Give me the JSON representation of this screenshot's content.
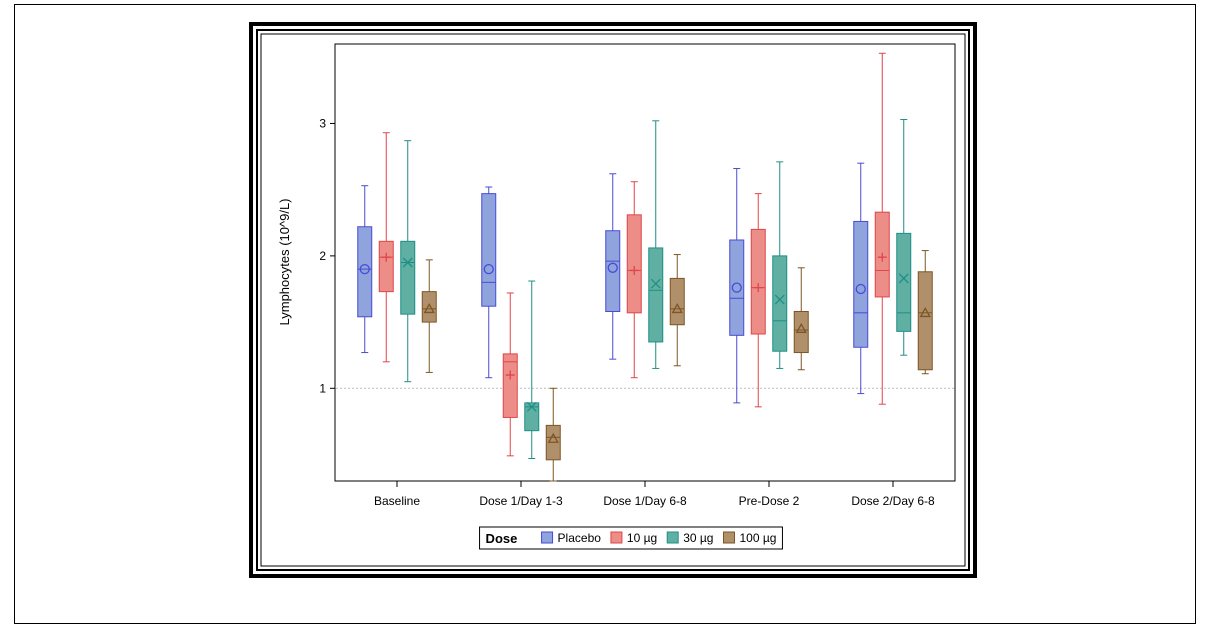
{
  "chart_data": {
    "type": "boxplot",
    "ylabel": "Lymphocytes (10^9/L)",
    "xlabel": "",
    "ylim": [
      0.3,
      3.6
    ],
    "yticks": [
      1,
      2,
      3
    ],
    "reference_line": 1,
    "categories": [
      "Baseline",
      "Dose 1/Day 1-3",
      "Dose 1/Day 6-8",
      "Pre-Dose 2",
      "Dose 2/Day 6-8"
    ],
    "legend": {
      "title": "Dose",
      "placement": "bottom-center"
    },
    "series": [
      {
        "name": "Placebo",
        "marker": "circle",
        "fill": "#8fa3dd",
        "stroke": "#4a4ad6",
        "stats": [
          {
            "min": 1.27,
            "q1": 1.54,
            "median": 1.9,
            "q3": 2.22,
            "max": 2.53,
            "mean": 1.9
          },
          {
            "min": 1.08,
            "q1": 1.62,
            "median": 1.8,
            "q3": 2.47,
            "max": 2.52,
            "mean": 1.9
          },
          {
            "min": 1.22,
            "q1": 1.58,
            "median": 1.96,
            "q3": 2.19,
            "max": 2.62,
            "mean": 1.91
          },
          {
            "min": 0.89,
            "q1": 1.4,
            "median": 1.68,
            "q3": 2.12,
            "max": 2.66,
            "mean": 1.76
          },
          {
            "min": 0.96,
            "q1": 1.31,
            "median": 1.57,
            "q3": 2.26,
            "max": 2.7,
            "mean": 1.75
          }
        ]
      },
      {
        "name": "10 µg",
        "marker": "plus",
        "fill": "#ec8e87",
        "stroke": "#e0454a",
        "stats": [
          {
            "min": 1.2,
            "q1": 1.73,
            "median": 1.99,
            "q3": 2.11,
            "max": 2.93,
            "mean": 1.99
          },
          {
            "min": 0.49,
            "q1": 0.78,
            "median": 1.2,
            "q3": 1.26,
            "max": 1.72,
            "mean": 1.1
          },
          {
            "min": 1.08,
            "q1": 1.57,
            "median": 1.89,
            "q3": 2.31,
            "max": 2.56,
            "mean": 1.89
          },
          {
            "min": 0.86,
            "q1": 1.41,
            "median": 1.76,
            "q3": 2.2,
            "max": 2.47,
            "mean": 1.76
          },
          {
            "min": 0.88,
            "q1": 1.69,
            "median": 1.89,
            "q3": 2.33,
            "max": 3.53,
            "mean": 1.99
          }
        ]
      },
      {
        "name": "30 µg",
        "marker": "x",
        "fill": "#5fb0a2",
        "stroke": "#1f8f86",
        "stats": [
          {
            "min": 1.05,
            "q1": 1.56,
            "median": 1.95,
            "q3": 2.11,
            "max": 2.87,
            "mean": 1.95
          },
          {
            "min": 0.47,
            "q1": 0.68,
            "median": 0.86,
            "q3": 0.89,
            "max": 1.81,
            "mean": 0.86
          },
          {
            "min": 1.15,
            "q1": 1.35,
            "median": 1.74,
            "q3": 2.06,
            "max": 3.02,
            "mean": 1.79
          },
          {
            "min": 1.15,
            "q1": 1.28,
            "median": 1.51,
            "q3": 2.0,
            "max": 2.71,
            "mean": 1.67
          },
          {
            "min": 1.25,
            "q1": 1.43,
            "median": 1.57,
            "q3": 2.17,
            "max": 3.03,
            "mean": 1.83
          }
        ]
      },
      {
        "name": "100 µg",
        "marker": "triangle",
        "fill": "#b0906a",
        "stroke": "#7d5524",
        "stats": [
          {
            "min": 1.12,
            "q1": 1.5,
            "median": 1.6,
            "q3": 1.73,
            "max": 1.97,
            "mean": 1.6
          },
          {
            "min": 0.3,
            "q1": 0.46,
            "median": 0.63,
            "q3": 0.72,
            "max": 1.0,
            "mean": 0.62
          },
          {
            "min": 1.17,
            "q1": 1.48,
            "median": 1.6,
            "q3": 1.83,
            "max": 2.01,
            "mean": 1.6
          },
          {
            "min": 1.14,
            "q1": 1.27,
            "median": 1.44,
            "q3": 1.58,
            "max": 1.91,
            "mean": 1.45
          },
          {
            "min": 1.11,
            "q1": 1.14,
            "median": 1.57,
            "q3": 1.88,
            "max": 2.04,
            "mean": 1.57
          }
        ]
      }
    ]
  }
}
